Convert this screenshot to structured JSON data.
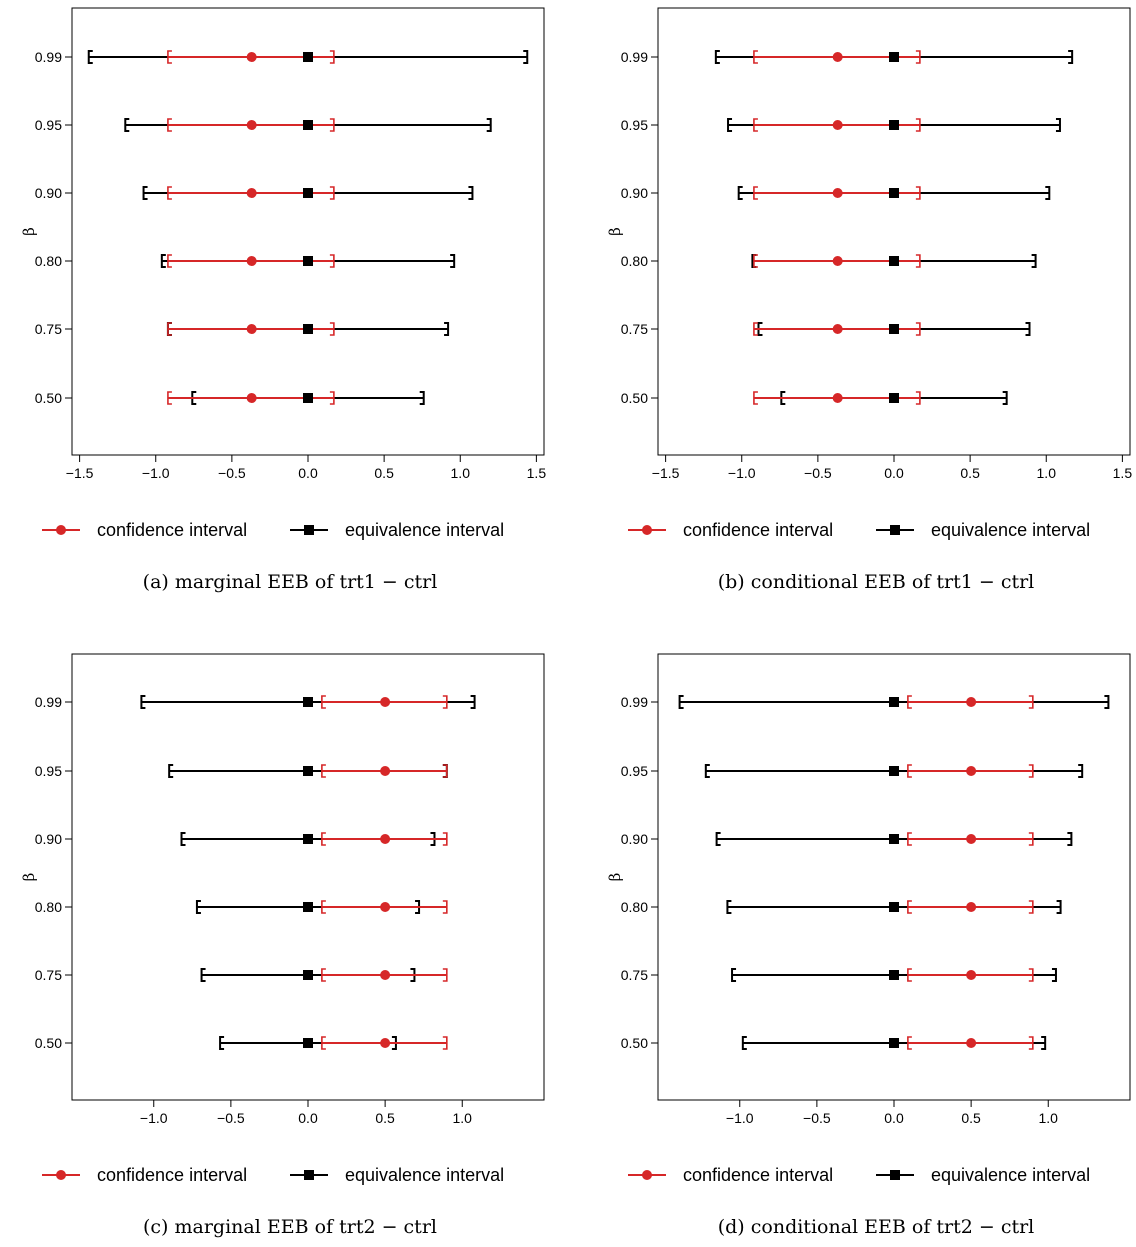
{
  "colors": {
    "confidence": "#d62728",
    "equivalence": "#000000",
    "frame": "#000000"
  },
  "legend": {
    "confidence_label": "confidence interval",
    "equivalence_label": "equivalence interval"
  },
  "chart_data": [
    {
      "type": "interval",
      "caption": "(a) marginal EEB of trt1 − ctrl",
      "ylabel": "β",
      "xlim": [
        -1.55,
        1.55
      ],
      "xticks": [
        -1.5,
        -1.0,
        -0.5,
        0.0,
        0.5,
        1.0,
        1.5
      ],
      "xtick_labels": [
        "−1.5",
        "−1.0",
        "−0.5",
        "0.0",
        "0.5",
        "1.0",
        "1.5"
      ],
      "categories": [
        "0.99",
        "0.95",
        "0.90",
        "0.80",
        "0.75",
        "0.50"
      ],
      "confidence": {
        "point": -0.37,
        "lower": -0.92,
        "upper": 0.17
      },
      "equivalence": [
        {
          "lower": -1.44,
          "upper": 1.44
        },
        {
          "lower": -1.2,
          "upper": 1.2
        },
        {
          "lower": -1.08,
          "upper": 1.08
        },
        {
          "lower": -0.96,
          "upper": 0.96
        },
        {
          "lower": -0.92,
          "upper": 0.92
        },
        {
          "lower": -0.76,
          "upper": 0.76
        }
      ]
    },
    {
      "type": "interval",
      "caption": "(b) conditional EEB of trt1 − ctrl",
      "ylabel": "β",
      "xlim": [
        -1.55,
        1.55
      ],
      "xticks": [
        -1.5,
        -1.0,
        -0.5,
        0.0,
        0.5,
        1.0,
        1.5
      ],
      "xtick_labels": [
        "−1.5",
        "−1.0",
        "−0.5",
        "0.0",
        "0.5",
        "1.0",
        "1.5"
      ],
      "categories": [
        "0.99",
        "0.95",
        "0.90",
        "0.80",
        "0.75",
        "0.50"
      ],
      "confidence": {
        "point": -0.37,
        "lower": -0.92,
        "upper": 0.17
      },
      "equivalence": [
        {
          "lower": -1.17,
          "upper": 1.17
        },
        {
          "lower": -1.09,
          "upper": 1.09
        },
        {
          "lower": -1.02,
          "upper": 1.02
        },
        {
          "lower": -0.93,
          "upper": 0.93
        },
        {
          "lower": -0.89,
          "upper": 0.89
        },
        {
          "lower": -0.74,
          "upper": 0.74
        }
      ]
    },
    {
      "type": "interval",
      "caption": "(c) marginal EEB of trt2 − ctrl",
      "ylabel": "β",
      "xlim": [
        -1.53,
        1.53
      ],
      "xticks": [
        -1.0,
        -0.5,
        0.0,
        0.5,
        1.0
      ],
      "xtick_labels": [
        "−1.0",
        "−0.5",
        "0.0",
        "0.5",
        "1.0"
      ],
      "categories": [
        "0.99",
        "0.95",
        "0.90",
        "0.80",
        "0.75",
        "0.50"
      ],
      "confidence": {
        "point": 0.5,
        "lower": 0.09,
        "upper": 0.9
      },
      "equivalence": [
        {
          "lower": -1.08,
          "upper": 1.08
        },
        {
          "lower": -0.9,
          "upper": 0.9
        },
        {
          "lower": -0.82,
          "upper": 0.82
        },
        {
          "lower": -0.72,
          "upper": 0.72
        },
        {
          "lower": -0.69,
          "upper": 0.69
        },
        {
          "lower": -0.57,
          "upper": 0.57
        }
      ]
    },
    {
      "type": "interval",
      "caption": "(d) conditional EEB of trt2 − ctrl",
      "ylabel": "β",
      "xlim": [
        -1.53,
        1.53
      ],
      "xticks": [
        -1.0,
        -0.5,
        0.0,
        0.5,
        1.0
      ],
      "xtick_labels": [
        "−1.0",
        "−0.5",
        "0.0",
        "0.5",
        "1.0"
      ],
      "categories": [
        "0.99",
        "0.95",
        "0.90",
        "0.80",
        "0.75",
        "0.50"
      ],
      "confidence": {
        "point": 0.5,
        "lower": 0.09,
        "upper": 0.9
      },
      "equivalence": [
        {
          "lower": -1.39,
          "upper": 1.39
        },
        {
          "lower": -1.22,
          "upper": 1.22
        },
        {
          "lower": -1.15,
          "upper": 1.15
        },
        {
          "lower": -1.08,
          "upper": 1.08
        },
        {
          "lower": -1.05,
          "upper": 1.05
        },
        {
          "lower": -0.98,
          "upper": 0.98
        }
      ]
    }
  ]
}
